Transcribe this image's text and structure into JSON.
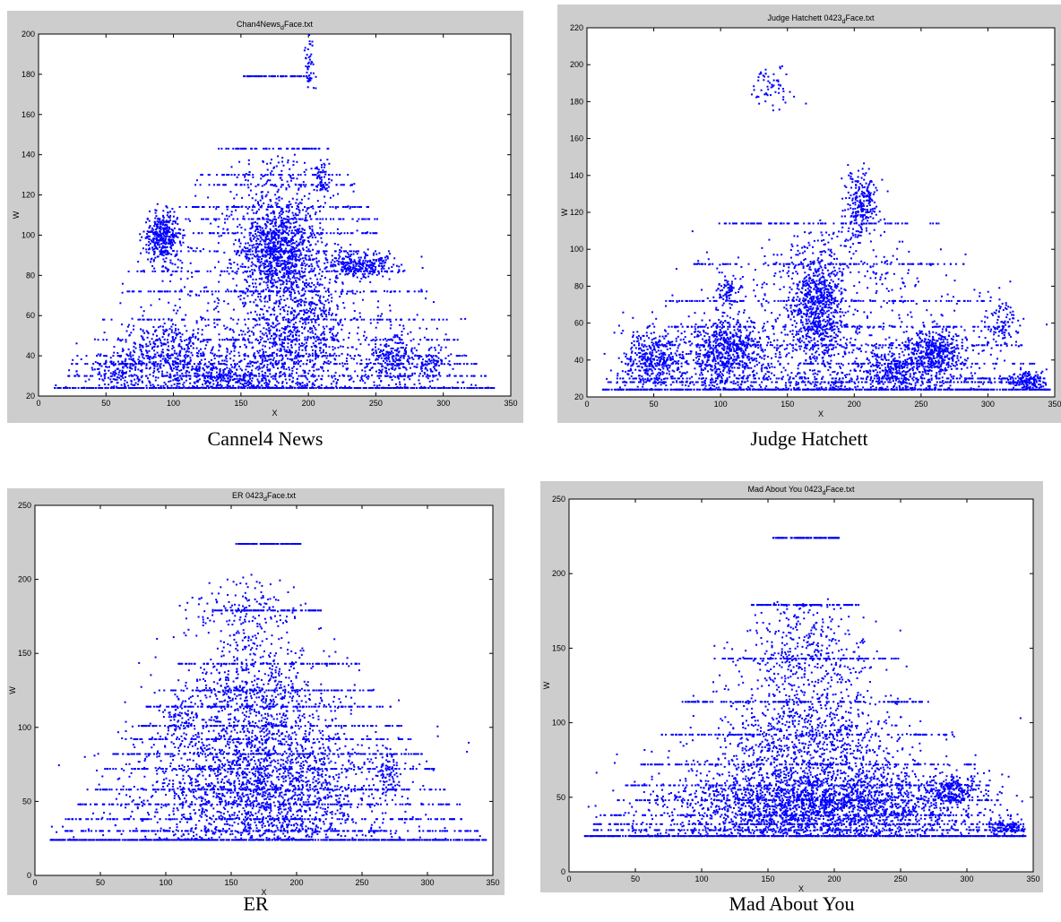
{
  "point_color": "#0000ff",
  "chart_data": [
    {
      "type": "scatter",
      "title_base": "Chan4News",
      "title_sub": "d",
      "title_tail": "Face.txt",
      "xlabel": "X",
      "ylabel": "W",
      "xlim": [
        0,
        350
      ],
      "ylim": [
        20,
        200
      ],
      "xticks": [
        0,
        50,
        100,
        150,
        200,
        250,
        300,
        350
      ],
      "yticks": [
        20,
        40,
        60,
        80,
        100,
        120,
        140,
        160,
        180,
        200
      ],
      "caption": "Cannel4 News",
      "x_range": [
        12,
        338
      ],
      "floor": 24,
      "clusters": [
        {
          "x": 92,
          "y": 99,
          "sx": 7,
          "sy": 6,
          "n": 380
        },
        {
          "x": 178,
          "y": 92,
          "sx": 14,
          "sy": 12,
          "n": 900
        },
        {
          "x": 240,
          "y": 85,
          "sx": 14,
          "sy": 3,
          "n": 260
        },
        {
          "x": 210,
          "y": 128,
          "sx": 3,
          "sy": 4,
          "n": 60
        },
        {
          "x": 95,
          "y": 42,
          "sx": 18,
          "sy": 8,
          "n": 380
        },
        {
          "x": 185,
          "y": 45,
          "sx": 20,
          "sy": 8,
          "n": 380
        },
        {
          "x": 262,
          "y": 40,
          "sx": 10,
          "sy": 6,
          "n": 200
        },
        {
          "x": 140,
          "y": 30,
          "sx": 22,
          "sy": 4,
          "n": 260
        },
        {
          "x": 60,
          "y": 33,
          "sx": 10,
          "sy": 5,
          "n": 150
        },
        {
          "x": 290,
          "y": 36,
          "sx": 8,
          "sy": 4,
          "n": 90
        },
        {
          "x": 200,
          "y": 65,
          "sx": 15,
          "sy": 8,
          "n": 220
        },
        {
          "x": 200,
          "y": 185,
          "sx": 2,
          "sy": 8,
          "n": 50
        }
      ],
      "levels": [
        24,
        30,
        36,
        40,
        48,
        58,
        72,
        82,
        92,
        101,
        108,
        114,
        125,
        130,
        143,
        179
      ],
      "level_points": 1400,
      "spread_points": 1100,
      "spread_top": 140
    },
    {
      "type": "scatter",
      "title_base": "Judge Hatchett 0423",
      "title_sub": "d",
      "title_tail": "Face.txt",
      "xlabel": "X",
      "ylabel": "W",
      "xlim": [
        0,
        350
      ],
      "ylim": [
        20,
        220
      ],
      "xticks": [
        0,
        50,
        100,
        150,
        200,
        250,
        300,
        350
      ],
      "yticks": [
        20,
        40,
        60,
        80,
        100,
        120,
        140,
        160,
        180,
        200,
        220
      ],
      "caption": "Judge Hatchett",
      "x_range": [
        12,
        348
      ],
      "floor": 24,
      "clusters": [
        {
          "x": 105,
          "y": 45,
          "sx": 14,
          "sy": 9,
          "n": 600
        },
        {
          "x": 50,
          "y": 40,
          "sx": 12,
          "sy": 8,
          "n": 400
        },
        {
          "x": 172,
          "y": 68,
          "sx": 10,
          "sy": 14,
          "n": 700
        },
        {
          "x": 260,
          "y": 45,
          "sx": 11,
          "sy": 7,
          "n": 450
        },
        {
          "x": 230,
          "y": 35,
          "sx": 14,
          "sy": 6,
          "n": 300
        },
        {
          "x": 205,
          "y": 125,
          "sx": 6,
          "sy": 10,
          "n": 250
        },
        {
          "x": 138,
          "y": 188,
          "sx": 8,
          "sy": 6,
          "n": 60
        },
        {
          "x": 330,
          "y": 28,
          "sx": 8,
          "sy": 3,
          "n": 150
        },
        {
          "x": 105,
          "y": 77,
          "sx": 4,
          "sy": 4,
          "n": 80
        },
        {
          "x": 310,
          "y": 60,
          "sx": 6,
          "sy": 8,
          "n": 100
        }
      ],
      "levels": [
        24,
        28,
        30,
        38,
        48,
        58,
        72,
        92,
        114
      ],
      "level_points": 1200,
      "spread_points": 900,
      "spread_top": 110
    },
    {
      "type": "scatter",
      "title_base": "ER 0423",
      "title_sub": "d",
      "title_tail": "Face.txt",
      "xlabel": "X",
      "ylabel": "W",
      "xlim": [
        0,
        350
      ],
      "ylim": [
        0,
        250
      ],
      "xticks": [
        0,
        50,
        100,
        150,
        200,
        250,
        300,
        350
      ],
      "yticks": [
        0,
        50,
        100,
        150,
        200,
        250
      ],
      "caption": "ER",
      "x_range": [
        12,
        345
      ],
      "floor": 24,
      "clusters": [
        {
          "x": 170,
          "y": 60,
          "sx": 45,
          "sy": 25,
          "n": 1800
        },
        {
          "x": 160,
          "y": 120,
          "sx": 25,
          "sy": 15,
          "n": 400
        },
        {
          "x": 150,
          "y": 175,
          "sx": 20,
          "sy": 12,
          "n": 120
        },
        {
          "x": 110,
          "y": 105,
          "sx": 6,
          "sy": 6,
          "n": 60
        },
        {
          "x": 270,
          "y": 70,
          "sx": 5,
          "sy": 8,
          "n": 80
        }
      ],
      "levels": [
        24,
        30,
        38,
        48,
        58,
        72,
        82,
        92,
        101,
        114,
        125,
        143,
        179,
        224
      ],
      "level_points": 2000,
      "spread_points": 600,
      "spread_top": 200
    },
    {
      "type": "scatter",
      "title_base": "Mad About You 0423",
      "title_sub": "d",
      "title_tail": "Face.txt",
      "xlabel": "X",
      "ylabel": "W",
      "xlim": [
        0,
        350
      ],
      "ylim": [
        0,
        250
      ],
      "xticks": [
        0,
        50,
        100,
        150,
        200,
        250,
        300,
        350
      ],
      "yticks": [
        0,
        50,
        100,
        150,
        200,
        250
      ],
      "caption": "Mad About You",
      "x_range": [
        12,
        345
      ],
      "floor": 24,
      "clusters": [
        {
          "x": 190,
          "y": 45,
          "sx": 55,
          "sy": 12,
          "n": 2200
        },
        {
          "x": 180,
          "y": 85,
          "sx": 35,
          "sy": 18,
          "n": 700
        },
        {
          "x": 175,
          "y": 140,
          "sx": 25,
          "sy": 18,
          "n": 250
        },
        {
          "x": 290,
          "y": 55,
          "sx": 10,
          "sy": 5,
          "n": 200
        },
        {
          "x": 330,
          "y": 30,
          "sx": 8,
          "sy": 3,
          "n": 120
        }
      ],
      "levels": [
        24,
        28,
        32,
        38,
        48,
        58,
        72,
        92,
        114,
        143,
        179,
        224
      ],
      "level_points": 1800,
      "spread_points": 700,
      "spread_top": 180
    }
  ]
}
